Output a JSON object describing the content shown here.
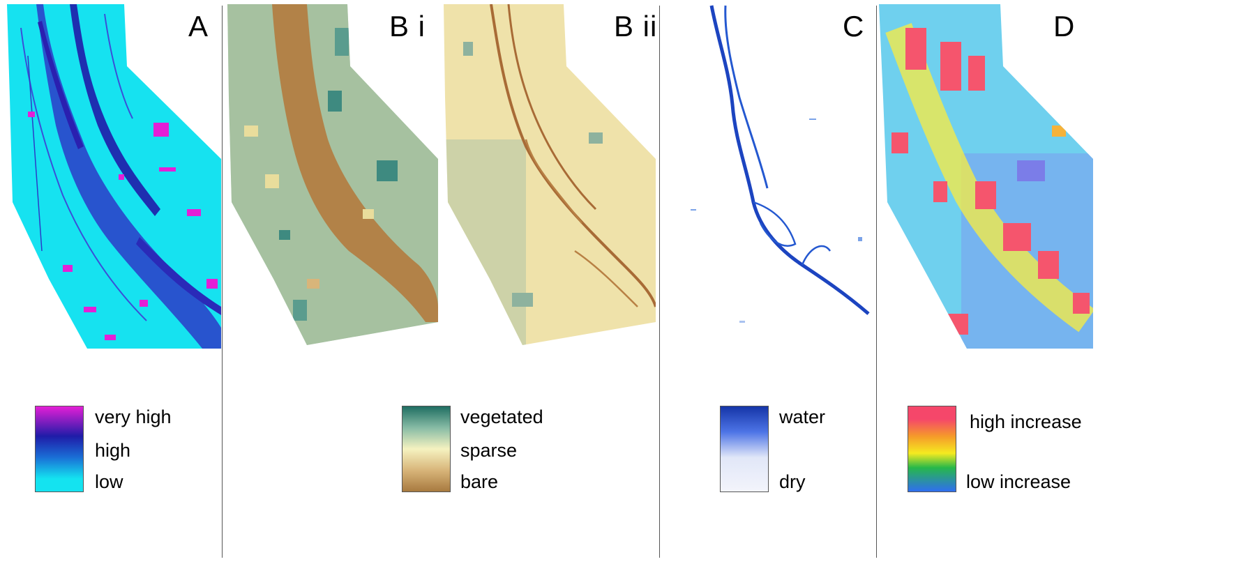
{
  "panels": {
    "a": {
      "label": "A",
      "legend": {
        "top": "very high",
        "middle": "high",
        "bottom": "low"
      },
      "colors": {
        "very_high": "#e41fd6",
        "high": "#1f1ca8",
        "low": "#14e3f0"
      }
    },
    "bi": {
      "label": "B i"
    },
    "bii": {
      "label": "B ii"
    },
    "b_legend": {
      "top": "vegetated",
      "middle": "sparse",
      "bottom": "bare",
      "colors": {
        "vegetated": "#1f6e62",
        "sparse": "#f5f2c0",
        "bare": "#a87a3f"
      }
    },
    "c": {
      "label": "C",
      "legend": {
        "top": "water",
        "bottom": "dry"
      },
      "colors": {
        "water": "#1535a8",
        "dry": "#f3f4fb"
      }
    },
    "d": {
      "label": "D",
      "legend": {
        "top": "high increase",
        "bottom": "low increase"
      },
      "colors": {
        "high": "#f5476a",
        "mid": "#f5ea20",
        "low": "#2f6ef0"
      }
    }
  }
}
